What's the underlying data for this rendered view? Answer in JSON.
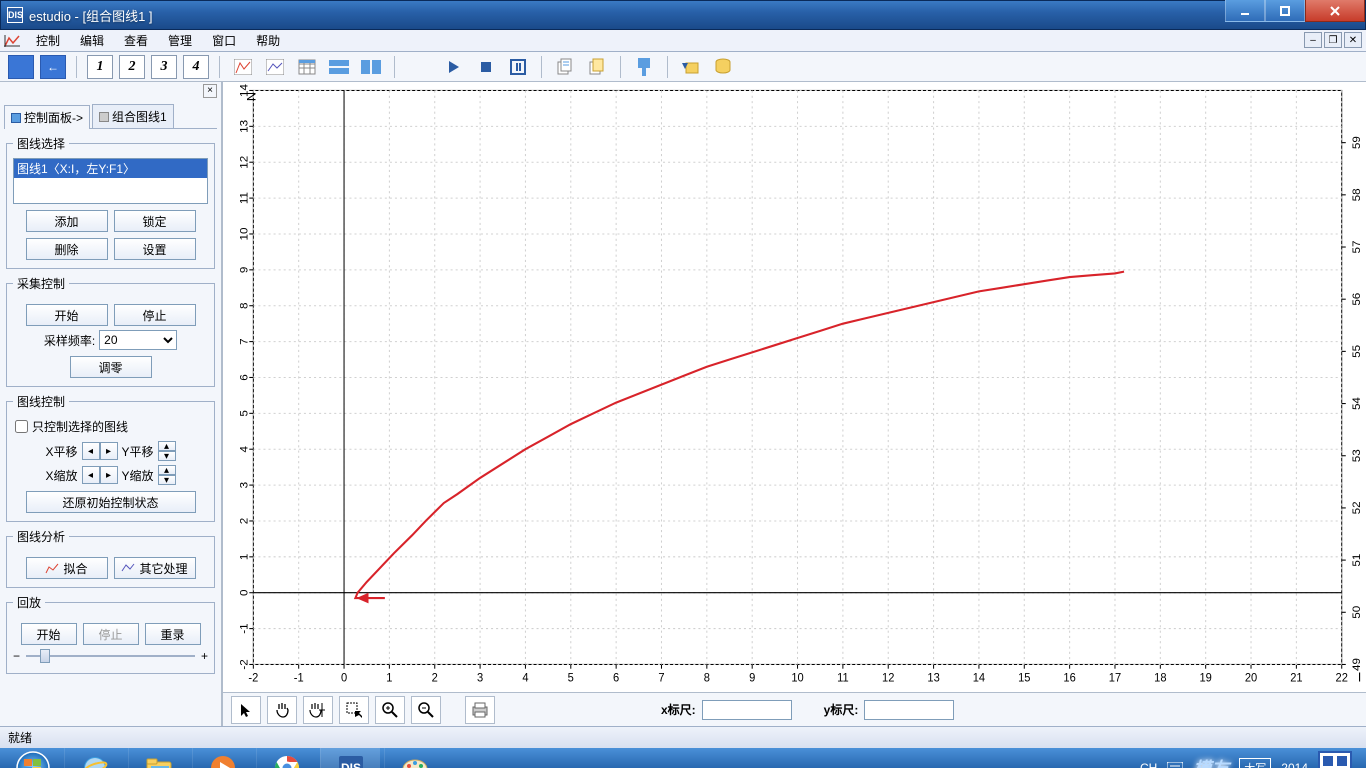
{
  "window": {
    "title": "estudio - [组合图线1 ]",
    "app_icon_text": "DIS"
  },
  "menu": {
    "items": [
      "控制",
      "编辑",
      "查看",
      "管理",
      "窗口",
      "帮助"
    ]
  },
  "toolbar": {
    "numbers": [
      "1",
      "2",
      "3",
      "4"
    ]
  },
  "leftpanel": {
    "tabs": {
      "control": "控制面板->",
      "graph": "组合图线1"
    },
    "group_select": {
      "legend": "图线选择",
      "selected_item": "图线1〈X:I，左Y:F1〉",
      "btn_add": "添加",
      "btn_lock": "锁定",
      "btn_delete": "删除",
      "btn_settings": "设置"
    },
    "group_acq": {
      "legend": "采集控制",
      "btn_start": "开始",
      "btn_stop": "停止",
      "rate_label": "采样频率:",
      "rate_value": "20",
      "btn_zero": "调零"
    },
    "group_ctrl": {
      "legend": "图线控制",
      "checkbox": "只控制选择的图线",
      "xpan": "X平移",
      "ypan": "Y平移",
      "xzoom": "X缩放",
      "yzoom": "Y缩放",
      "btn_reset": "还原初始控制状态"
    },
    "group_analysis": {
      "legend": "图线分析",
      "btn_fit": "拟合",
      "btn_other": "其它处理"
    },
    "group_playback": {
      "legend": "回放",
      "btn_start": "开始",
      "btn_stop": "停止",
      "btn_rerecord": "重录"
    }
  },
  "chart": {
    "type": "line",
    "background_color": "#ffffff",
    "grid_color": "#d0d0d0",
    "axis_color": "#000000",
    "line_color": "#d8232a",
    "line_width": 2,
    "top_right_label": "N",
    "left_axis": {
      "min": -2,
      "max": 14,
      "ticks": [
        -2,
        -1,
        0,
        1,
        2,
        3,
        4,
        5,
        6,
        7,
        8,
        9,
        10,
        11,
        12,
        13,
        14
      ]
    },
    "bottom_axis": {
      "min": -2,
      "max": 22,
      "ticks": [
        -2,
        -1,
        0,
        1,
        2,
        3,
        4,
        5,
        6,
        7,
        8,
        9,
        10,
        11,
        12,
        13,
        14,
        15,
        16,
        17,
        18,
        19,
        20,
        21,
        22
      ],
      "label": "I"
    },
    "right_axis": {
      "min": 49,
      "max": 60,
      "ticks": [
        49,
        50,
        51,
        52,
        53,
        54,
        55,
        56,
        57,
        58,
        59
      ]
    },
    "curve_points": [
      [
        0.45,
        -0.15
      ],
      [
        0.25,
        -0.15
      ],
      [
        0.3,
        0.0
      ],
      [
        0.5,
        0.3
      ],
      [
        0.8,
        0.7
      ],
      [
        1.1,
        1.1
      ],
      [
        1.5,
        1.6
      ],
      [
        1.8,
        2.0
      ],
      [
        2.2,
        2.5
      ],
      [
        2.5,
        2.75
      ],
      [
        3.0,
        3.2
      ],
      [
        3.5,
        3.6
      ],
      [
        4.0,
        4.0
      ],
      [
        4.5,
        4.35
      ],
      [
        5.0,
        4.7
      ],
      [
        5.5,
        5.0
      ],
      [
        6.0,
        5.3
      ],
      [
        6.5,
        5.55
      ],
      [
        7.0,
        5.8
      ],
      [
        7.5,
        6.05
      ],
      [
        8.0,
        6.3
      ],
      [
        8.5,
        6.5
      ],
      [
        9.0,
        6.7
      ],
      [
        9.5,
        6.9
      ],
      [
        10.0,
        7.1
      ],
      [
        10.5,
        7.3
      ],
      [
        11.0,
        7.5
      ],
      [
        11.5,
        7.65
      ],
      [
        12.0,
        7.8
      ],
      [
        12.5,
        7.95
      ],
      [
        13.0,
        8.1
      ],
      [
        13.5,
        8.25
      ],
      [
        14.0,
        8.4
      ],
      [
        14.5,
        8.5
      ],
      [
        15.0,
        8.6
      ],
      [
        15.5,
        8.7
      ],
      [
        16.0,
        8.8
      ],
      [
        16.5,
        8.85
      ],
      [
        17.0,
        8.9
      ],
      [
        17.2,
        8.95
      ]
    ],
    "arrow_tail": [
      [
        0.9,
        -0.15
      ],
      [
        0.45,
        -0.15
      ]
    ]
  },
  "charttools": {
    "x_ruler_label": "x标尺:",
    "y_ruler_label": "y标尺:",
    "x_ruler_value": "",
    "y_ruler_value": ""
  },
  "statusbar": {
    "ready": "就绪"
  },
  "taskbar": {
    "tray": {
      "ime_label": "CH",
      "caps": "大写",
      "year": "2014",
      "watermark": "模友"
    }
  }
}
